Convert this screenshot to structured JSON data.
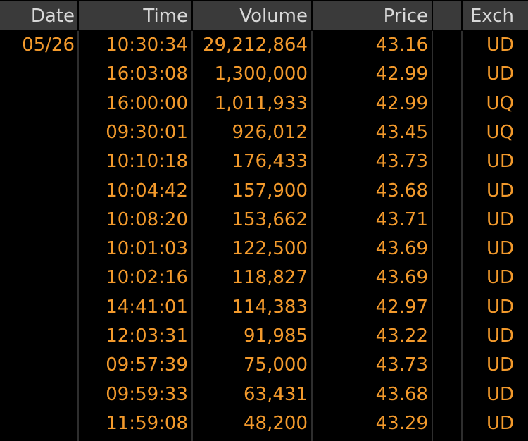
{
  "table": {
    "columns": [
      "Date",
      "Time",
      "Volume",
      "Price",
      "Exch"
    ],
    "rows": [
      [
        "05/26",
        "10:30:34",
        "29,212,864",
        "43.16",
        "UD"
      ],
      [
        null,
        "16:03:08",
        "1,300,000",
        "42.99",
        "UD"
      ],
      [
        null,
        "16:00:00",
        "1,011,933",
        "42.99",
        "UQ"
      ],
      [
        null,
        "09:30:01",
        "926,012",
        "43.45",
        "UQ"
      ],
      [
        null,
        "10:10:18",
        "176,433",
        "43.73",
        "UD"
      ],
      [
        null,
        "10:04:42",
        "157,900",
        "43.68",
        "UD"
      ],
      [
        null,
        "10:08:20",
        "153,662",
        "43.71",
        "UD"
      ],
      [
        null,
        "10:01:03",
        "122,500",
        "43.69",
        "UD"
      ],
      [
        null,
        "10:02:16",
        "118,827",
        "43.69",
        "UD"
      ],
      [
        null,
        "14:41:01",
        "114,383",
        "42.97",
        "UD"
      ],
      [
        null,
        "12:03:31",
        "91,985",
        "43.22",
        "UD"
      ],
      [
        null,
        "09:57:39",
        "75,000",
        "43.73",
        "UD"
      ],
      [
        null,
        "09:59:33",
        "63,431",
        "43.68",
        "UD"
      ],
      [
        null,
        "11:59:08",
        "48,200",
        "43.29",
        "UD"
      ]
    ]
  }
}
